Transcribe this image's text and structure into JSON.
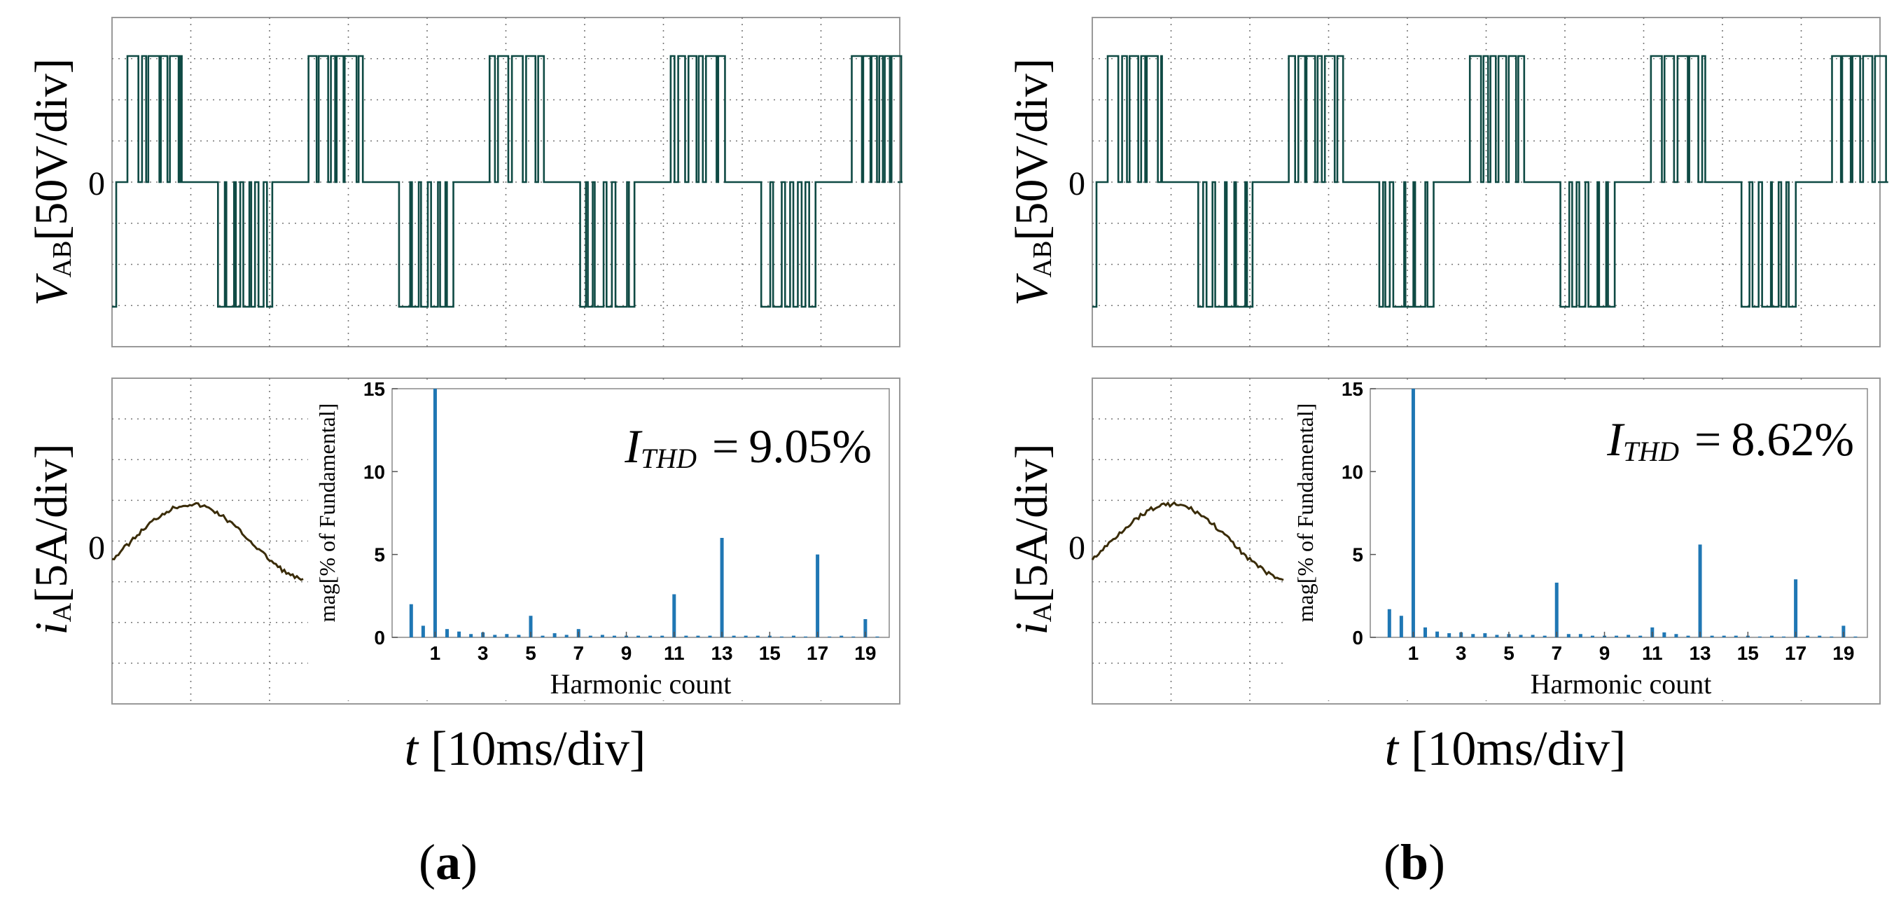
{
  "figure": {
    "panels": [
      {
        "label_open": "(",
        "label_letter": "a",
        "label_close": ")",
        "thd_symbol": "I",
        "thd_subscript": "THD",
        "thd_equals": "=",
        "thd_value": "9.05%"
      },
      {
        "label_open": "(",
        "label_letter": "b",
        "label_close": ")",
        "thd_symbol": "I",
        "thd_subscript": "THD",
        "thd_equals": "=",
        "thd_value": "8.62%"
      }
    ],
    "voltage_axis": {
      "symbol": "V",
      "subscript": "AB",
      "scale": "[50V/div]",
      "zero": "0"
    },
    "current_axis": {
      "symbol": "i",
      "subscript": "A",
      "scale": "[5A/div]",
      "zero": "0"
    },
    "time_axis": {
      "symbol": "t",
      "scale": "[10ms/div]"
    }
  },
  "colors": {
    "voltage_trace": "#0f4a44",
    "current_trace": "#3a2c08",
    "bars": "#1f77b4",
    "grid": "#777777",
    "frame": "#999999"
  },
  "chart_data": [
    {
      "type": "bar",
      "panel": "a",
      "title": "",
      "xlabel": "Harmonic count",
      "ylabel": "mag[% of Fundamental]",
      "ylim": [
        0,
        15
      ],
      "xlim": [
        -0.8,
        20
      ],
      "xticks": [
        1,
        3,
        5,
        7,
        9,
        11,
        13,
        15,
        17,
        19
      ],
      "yticks": [
        0,
        5,
        10,
        15
      ],
      "annotation": "I_THD = 9.05%",
      "x": [
        0,
        0.5,
        1,
        1.5,
        2,
        2.5,
        3,
        3.5,
        4,
        4.5,
        5,
        5.5,
        6,
        6.5,
        7,
        7.5,
        8,
        8.5,
        9,
        9.5,
        10,
        10.5,
        11,
        11.5,
        12,
        12.5,
        13,
        13.5,
        14,
        14.5,
        15,
        15.5,
        16,
        16.5,
        17,
        17.5,
        18,
        18.5,
        19,
        19.5
      ],
      "values": [
        2.0,
        0.7,
        15.0,
        0.5,
        0.35,
        0.2,
        0.3,
        0.15,
        0.2,
        0.15,
        1.3,
        0.1,
        0.25,
        0.15,
        0.5,
        0.1,
        0.15,
        0.1,
        0.1,
        0.1,
        0.1,
        0.1,
        2.6,
        0.1,
        0.1,
        0.1,
        6.0,
        0.1,
        0.1,
        0.1,
        0.1,
        0.05,
        0.1,
        0.05,
        5.0,
        0.05,
        0.1,
        0.05,
        1.1,
        0.05
      ]
    },
    {
      "type": "bar",
      "panel": "b",
      "title": "",
      "xlabel": "Harmonic count",
      "ylabel": "mag[% of Fundamental]",
      "ylim": [
        0,
        15
      ],
      "xlim": [
        -0.8,
        20
      ],
      "xticks": [
        1,
        3,
        5,
        7,
        9,
        11,
        13,
        15,
        17,
        19
      ],
      "yticks": [
        0,
        5,
        10,
        15
      ],
      "annotation": "I_THD = 8.62%",
      "x": [
        0,
        0.5,
        1,
        1.5,
        2,
        2.5,
        3,
        3.5,
        4,
        4.5,
        5,
        5.5,
        6,
        6.5,
        7,
        7.5,
        8,
        8.5,
        9,
        9.5,
        10,
        10.5,
        11,
        11.5,
        12,
        12.5,
        13,
        13.5,
        14,
        14.5,
        15,
        15.5,
        16,
        16.5,
        17,
        17.5,
        18,
        18.5,
        19,
        19.5
      ],
      "values": [
        1.7,
        1.3,
        15.0,
        0.6,
        0.35,
        0.25,
        0.3,
        0.2,
        0.25,
        0.15,
        0.2,
        0.15,
        0.15,
        0.1,
        3.3,
        0.2,
        0.2,
        0.1,
        0.1,
        0.1,
        0.15,
        0.1,
        0.6,
        0.3,
        0.2,
        0.1,
        5.6,
        0.1,
        0.1,
        0.1,
        0.1,
        0.05,
        0.1,
        0.05,
        3.5,
        0.1,
        0.1,
        0.05,
        0.7,
        0.05
      ]
    }
  ]
}
